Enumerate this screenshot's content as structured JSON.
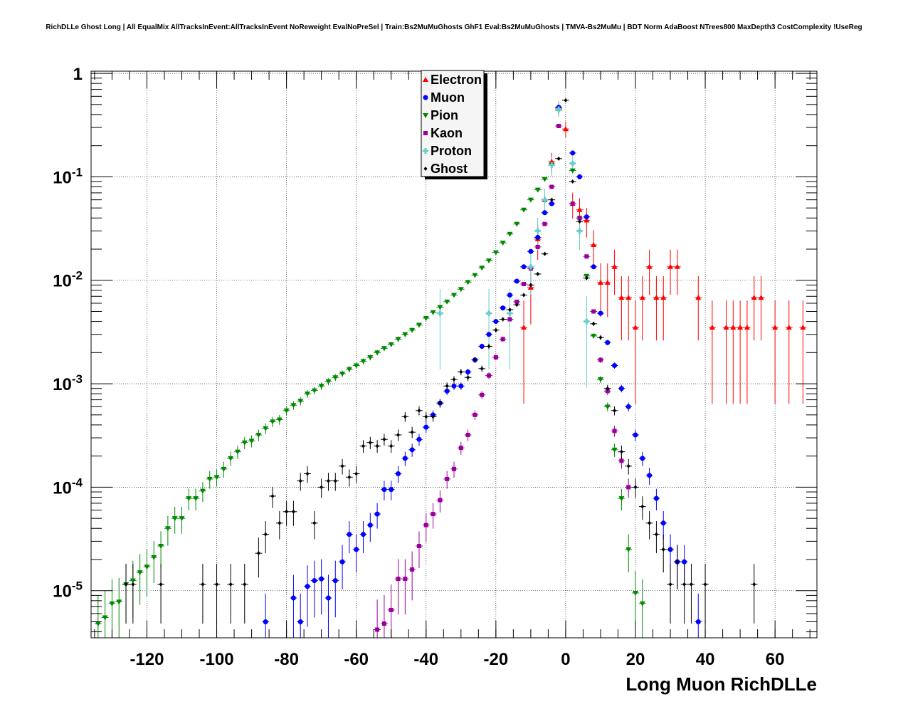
{
  "title": "RichDLLe Ghost Long | All EqualMix AllTracksInEvent:AllTracksInEvent NoReweight EvalNoPreSel | Train:Bs2MuMuGhosts GhF1 Eval:Bs2MuMuGhosts | TMVA-Bs2MuMu | BDT Norm AdaBoost NTrees800 MaxDepth3 CostComplexity !UseReg",
  "chart_data": {
    "type": "scatter",
    "title": "RichDLLe Ghost Long | All EqualMix AllTracksInEvent:AllTracksInEvent NoReweight EvalNoPreSel | Train:Bs2MuMuGhosts GhF1 Eval:Bs2MuMuGhosts | TMVA-Bs2MuMu | BDT Norm AdaBoost NTrees800 MaxDepth3 CostComplexity !UseReg",
    "xlabel": "Long Muon RichDLLe",
    "ylabel": "",
    "xlim": [
      -136,
      72
    ],
    "ylim": [
      3.5e-06,
      1.05
    ],
    "yscale": "log",
    "grid": true,
    "legend_position": "top-center",
    "x_ticks": [
      "-120",
      "-100",
      "-80",
      "-60",
      "-40",
      "-20",
      "0",
      "20",
      "40",
      "60"
    ],
    "y_ticks": [
      {
        "base": "1",
        "exp": ""
      },
      {
        "base": "10",
        "exp": "-1"
      },
      {
        "base": "10",
        "exp": "-2"
      },
      {
        "base": "10",
        "exp": "-3"
      },
      {
        "base": "10",
        "exp": "-4"
      },
      {
        "base": "10",
        "exp": "-5"
      }
    ],
    "series": [
      {
        "name": "Electron",
        "color": "#ff0000",
        "marker": "triangle-up",
        "points": [
          [
            -12,
            0.0035
          ],
          [
            -10,
            0.0085
          ],
          [
            -8,
            0.025
          ],
          [
            -6,
            0.06
          ],
          [
            -4,
            0.14
          ],
          [
            -2,
            0.46
          ],
          [
            0,
            0.29
          ],
          [
            2,
            0.055
          ],
          [
            4,
            0.048
          ],
          [
            6,
            0.038
          ],
          [
            8,
            0.022
          ],
          [
            10,
            0.0095
          ],
          [
            12,
            0.0095
          ],
          [
            14,
            0.0135
          ],
          [
            16,
            0.0068
          ],
          [
            18,
            0.0068
          ],
          [
            20,
            0.0035
          ],
          [
            22,
            0.0068
          ],
          [
            24,
            0.0135
          ],
          [
            26,
            0.0068
          ],
          [
            28,
            0.0068
          ],
          [
            30,
            0.0135
          ],
          [
            32,
            0.0135
          ],
          [
            38,
            0.0068
          ],
          [
            42,
            0.0035
          ],
          [
            46,
            0.0035
          ],
          [
            48,
            0.0035
          ],
          [
            50,
            0.0035
          ],
          [
            52,
            0.0035
          ],
          [
            54,
            0.0068
          ],
          [
            56,
            0.0068
          ],
          [
            60,
            0.0035
          ],
          [
            64,
            0.0035
          ],
          [
            68,
            0.0035
          ]
        ]
      },
      {
        "name": "Muon",
        "color": "#0000ff",
        "marker": "circle",
        "points": [
          [
            -86,
            5e-06
          ],
          [
            -78,
            8.5e-06
          ],
          [
            -76,
            5e-06
          ],
          [
            -74,
            1.1e-05
          ],
          [
            -72,
            1.25e-05
          ],
          [
            -70,
            1.3e-05
          ],
          [
            -68,
            8.5e-06
          ],
          [
            -66,
            1.25e-05
          ],
          [
            -64,
            1.9e-05
          ],
          [
            -62,
            3.5e-05
          ],
          [
            -60,
            2.5e-05
          ],
          [
            -58,
            3.5e-05
          ],
          [
            -56,
            4.3e-05
          ],
          [
            -54,
            5.5e-05
          ],
          [
            -52,
            9.5e-05
          ],
          [
            -50,
            9.5e-05
          ],
          [
            -48,
            0.000135
          ],
          [
            -46,
            0.00019
          ],
          [
            -44,
            0.00023
          ],
          [
            -42,
            0.00029
          ],
          [
            -40,
            0.00038
          ],
          [
            -38,
            0.0005
          ],
          [
            -36,
            0.00065
          ],
          [
            -34,
            0.00085
          ],
          [
            -32,
            0.00095
          ],
          [
            -30,
            0.00095
          ],
          [
            -28,
            0.0013
          ],
          [
            -26,
            0.0017
          ],
          [
            -24,
            0.0023
          ],
          [
            -22,
            0.003
          ],
          [
            -20,
            0.004
          ],
          [
            -18,
            0.0054
          ],
          [
            -16,
            0.0072
          ],
          [
            -14,
            0.0098
          ],
          [
            -12,
            0.0135
          ],
          [
            -10,
            0.019
          ],
          [
            -8,
            0.026
          ],
          [
            -6,
            0.045
          ],
          [
            -4,
            0.055
          ],
          [
            -2,
            0.47
          ],
          [
            2,
            0.17
          ],
          [
            4,
            0.1
          ],
          [
            6,
            0.041
          ],
          [
            8,
            0.0135
          ],
          [
            10,
            0.0048
          ],
          [
            12,
            0.0025
          ],
          [
            14,
            0.0015
          ],
          [
            16,
            0.0009
          ],
          [
            18,
            0.0006
          ],
          [
            20,
            0.00032
          ],
          [
            22,
            0.00019
          ],
          [
            24,
            0.00013
          ],
          [
            26,
            7.8e-05
          ],
          [
            28,
            4.5e-05
          ],
          [
            30,
            2.5e-05
          ],
          [
            32,
            1.9e-05
          ],
          [
            34,
            1.9e-05
          ],
          [
            38,
            5e-06
          ]
        ]
      },
      {
        "name": "Pion",
        "color": "#008800",
        "marker": "triangle-down",
        "points": [
          [
            -134,
            4.8e-06
          ],
          [
            -132,
            5.5e-06
          ],
          [
            -130,
            7.5e-06
          ],
          [
            -128,
            7.8e-06
          ],
          [
            -126,
            1.15e-05
          ],
          [
            -124,
            1.25e-05
          ],
          [
            -122,
            1.5e-05
          ],
          [
            -120,
            1.7e-05
          ],
          [
            -118,
            2.1e-05
          ],
          [
            -116,
            2.7e-05
          ],
          [
            -114,
            4e-05
          ],
          [
            -112,
            5e-05
          ],
          [
            -110,
            5e-05
          ],
          [
            -108,
            7.8e-05
          ],
          [
            -106,
            7.8e-05
          ],
          [
            -104,
            9.2e-05
          ],
          [
            -102,
            0.00012
          ],
          [
            -100,
            0.000125
          ],
          [
            -98,
            0.00015
          ],
          [
            -96,
            0.00019
          ],
          [
            -94,
            0.00022
          ],
          [
            -92,
            0.00027
          ],
          [
            -90,
            0.00028
          ],
          [
            -88,
            0.00032
          ],
          [
            -86,
            0.00037
          ],
          [
            -84,
            0.00043
          ],
          [
            -82,
            0.00045
          ],
          [
            -80,
            0.00055
          ],
          [
            -78,
            0.00062
          ],
          [
            -76,
            0.00068
          ],
          [
            -74,
            0.0008
          ],
          [
            -72,
            0.00086
          ],
          [
            -70,
            0.00095
          ],
          [
            -68,
            0.00105
          ],
          [
            -66,
            0.00115
          ],
          [
            -64,
            0.00125
          ],
          [
            -62,
            0.00138
          ],
          [
            -60,
            0.0015
          ],
          [
            -58,
            0.00165
          ],
          [
            -56,
            0.0018
          ],
          [
            -54,
            0.002
          ],
          [
            -52,
            0.0022
          ],
          [
            -50,
            0.0024
          ],
          [
            -48,
            0.0027
          ],
          [
            -46,
            0.003
          ],
          [
            -44,
            0.0033
          ],
          [
            -42,
            0.0037
          ],
          [
            -40,
            0.0043
          ],
          [
            -38,
            0.0049
          ],
          [
            -36,
            0.0055
          ],
          [
            -34,
            0.0062
          ],
          [
            -32,
            0.0072
          ],
          [
            -30,
            0.0082
          ],
          [
            -28,
            0.0096
          ],
          [
            -26,
            0.0112
          ],
          [
            -24,
            0.0132
          ],
          [
            -22,
            0.0155
          ],
          [
            -20,
            0.0186
          ],
          [
            -18,
            0.023
          ],
          [
            -16,
            0.028
          ],
          [
            -14,
            0.035
          ],
          [
            -12,
            0.048
          ],
          [
            -10,
            0.06
          ],
          [
            -8,
            0.075
          ],
          [
            -6,
            0.095
          ],
          [
            -4,
            0.13
          ],
          [
            -2,
            0.44
          ],
          [
            2,
            0.115
          ],
          [
            4,
            0.04
          ],
          [
            6,
            0.011
          ],
          [
            8,
            0.0029
          ],
          [
            10,
            0.0011
          ],
          [
            12,
            0.0006
          ],
          [
            14,
            0.00023
          ],
          [
            16,
            7.8e-05
          ],
          [
            18,
            2.5e-05
          ],
          [
            20,
            9.5e-06
          ],
          [
            22,
            7.5e-06
          ]
        ]
      },
      {
        "name": "Kaon",
        "color": "#990099",
        "marker": "square",
        "points": [
          [
            -54,
            4.2e-06
          ],
          [
            -52,
            4.8e-06
          ],
          [
            -50,
            6.5e-06
          ],
          [
            -48,
            1.3e-05
          ],
          [
            -46,
            1.3e-05
          ],
          [
            -44,
            1.6e-05
          ],
          [
            -42,
            2.7e-05
          ],
          [
            -40,
            4.3e-05
          ],
          [
            -38,
            5.5e-05
          ],
          [
            -36,
            7.5e-05
          ],
          [
            -34,
            0.00012
          ],
          [
            -32,
            0.00015
          ],
          [
            -30,
            0.00024
          ],
          [
            -28,
            0.00032
          ],
          [
            -26,
            0.0005
          ],
          [
            -24,
            0.00078
          ],
          [
            -22,
            0.0012
          ],
          [
            -20,
            0.0018
          ],
          [
            -18,
            0.0027
          ],
          [
            -16,
            0.0042
          ],
          [
            -14,
            0.0062
          ],
          [
            -12,
            0.0092
          ],
          [
            -10,
            0.013
          ],
          [
            -8,
            0.021
          ],
          [
            -6,
            0.035
          ],
          [
            -4,
            0.08
          ],
          [
            -2,
            0.31
          ],
          [
            2,
            0.055
          ],
          [
            4,
            0.04
          ],
          [
            6,
            0.017
          ],
          [
            8,
            0.005
          ],
          [
            10,
            0.0017
          ],
          [
            12,
            0.00085
          ],
          [
            14,
            0.00035
          ],
          [
            16,
            0.00018
          ],
          [
            18,
            0.0001
          ]
        ]
      },
      {
        "name": "Proton",
        "color": "#66cccc",
        "marker": "cross",
        "points": [
          [
            -36,
            0.0048
          ],
          [
            -22,
            0.0048
          ],
          [
            -16,
            0.0048
          ],
          [
            -10,
            0.0135
          ],
          [
            -8,
            0.03
          ],
          [
            -6,
            0.06
          ],
          [
            -4,
            0.13
          ],
          [
            -2,
            0.45
          ],
          [
            2,
            0.135
          ],
          [
            4,
            0.03
          ],
          [
            6,
            0.004
          ]
        ]
      },
      {
        "name": "Ghost",
        "color": "#000000",
        "marker": "diamond",
        "points": [
          [
            -126,
            1.15e-05
          ],
          [
            -124,
            1.15e-05
          ],
          [
            -116,
            1.15e-05
          ],
          [
            -104,
            1.15e-05
          ],
          [
            -100,
            1.15e-05
          ],
          [
            -96,
            1.15e-05
          ],
          [
            -92,
            1.15e-05
          ],
          [
            -88,
            2.3e-05
          ],
          [
            -86,
            3.5e-05
          ],
          [
            -84,
            8.2e-05
          ],
          [
            -82,
            4.5e-05
          ],
          [
            -80,
            5.8e-05
          ],
          [
            -78,
            5.8e-05
          ],
          [
            -76,
            0.000115
          ],
          [
            -74,
            0.000135
          ],
          [
            -72,
            4.5e-05
          ],
          [
            -70,
            0.0001
          ],
          [
            -68,
            0.000115
          ],
          [
            -66,
            0.000115
          ],
          [
            -64,
            0.00016
          ],
          [
            -62,
            0.000125
          ],
          [
            -60,
            0.000135
          ],
          [
            -58,
            0.00025
          ],
          [
            -56,
            0.00027
          ],
          [
            -54,
            0.00025
          ],
          [
            -52,
            0.00029
          ],
          [
            -50,
            0.00025
          ],
          [
            -48,
            0.00032
          ],
          [
            -46,
            0.00048
          ],
          [
            -44,
            0.00034
          ],
          [
            -42,
            0.00055
          ],
          [
            -40,
            0.00048
          ],
          [
            -38,
            0.00048
          ],
          [
            -36,
            0.00065
          ],
          [
            -34,
            0.00095
          ],
          [
            -32,
            0.0011
          ],
          [
            -30,
            0.0013
          ],
          [
            -28,
            0.00115
          ],
          [
            -26,
            0.0017
          ],
          [
            -24,
            0.0014
          ],
          [
            -22,
            0.0023
          ],
          [
            -20,
            0.0033
          ],
          [
            -18,
            0.0042
          ],
          [
            -16,
            0.0052
          ],
          [
            -14,
            0.0058
          ],
          [
            -12,
            0.0072
          ],
          [
            -10,
            0.009
          ],
          [
            -8,
            0.0115
          ],
          [
            -6,
            0.018
          ],
          [
            -4,
            0.06
          ],
          [
            -2,
            0.15
          ],
          [
            0,
            0.55
          ],
          [
            2,
            0.09
          ],
          [
            4,
            0.037
          ],
          [
            6,
            0.0105
          ],
          [
            8,
            0.0038
          ],
          [
            10,
            0.0028
          ],
          [
            12,
            0.0009
          ],
          [
            14,
            0.00055
          ],
          [
            16,
            0.00022
          ],
          [
            18,
            0.00016
          ],
          [
            20,
            0.0001
          ],
          [
            22,
            6.5e-05
          ],
          [
            24,
            4.5e-05
          ],
          [
            26,
            3.5e-05
          ],
          [
            28,
            2.5e-05
          ],
          [
            30,
            1.15e-05
          ],
          [
            32,
            1.9e-05
          ],
          [
            34,
            1.15e-05
          ],
          [
            36,
            1.15e-05
          ],
          [
            40,
            1.15e-05
          ],
          [
            54,
            1.15e-05
          ]
        ]
      }
    ]
  }
}
